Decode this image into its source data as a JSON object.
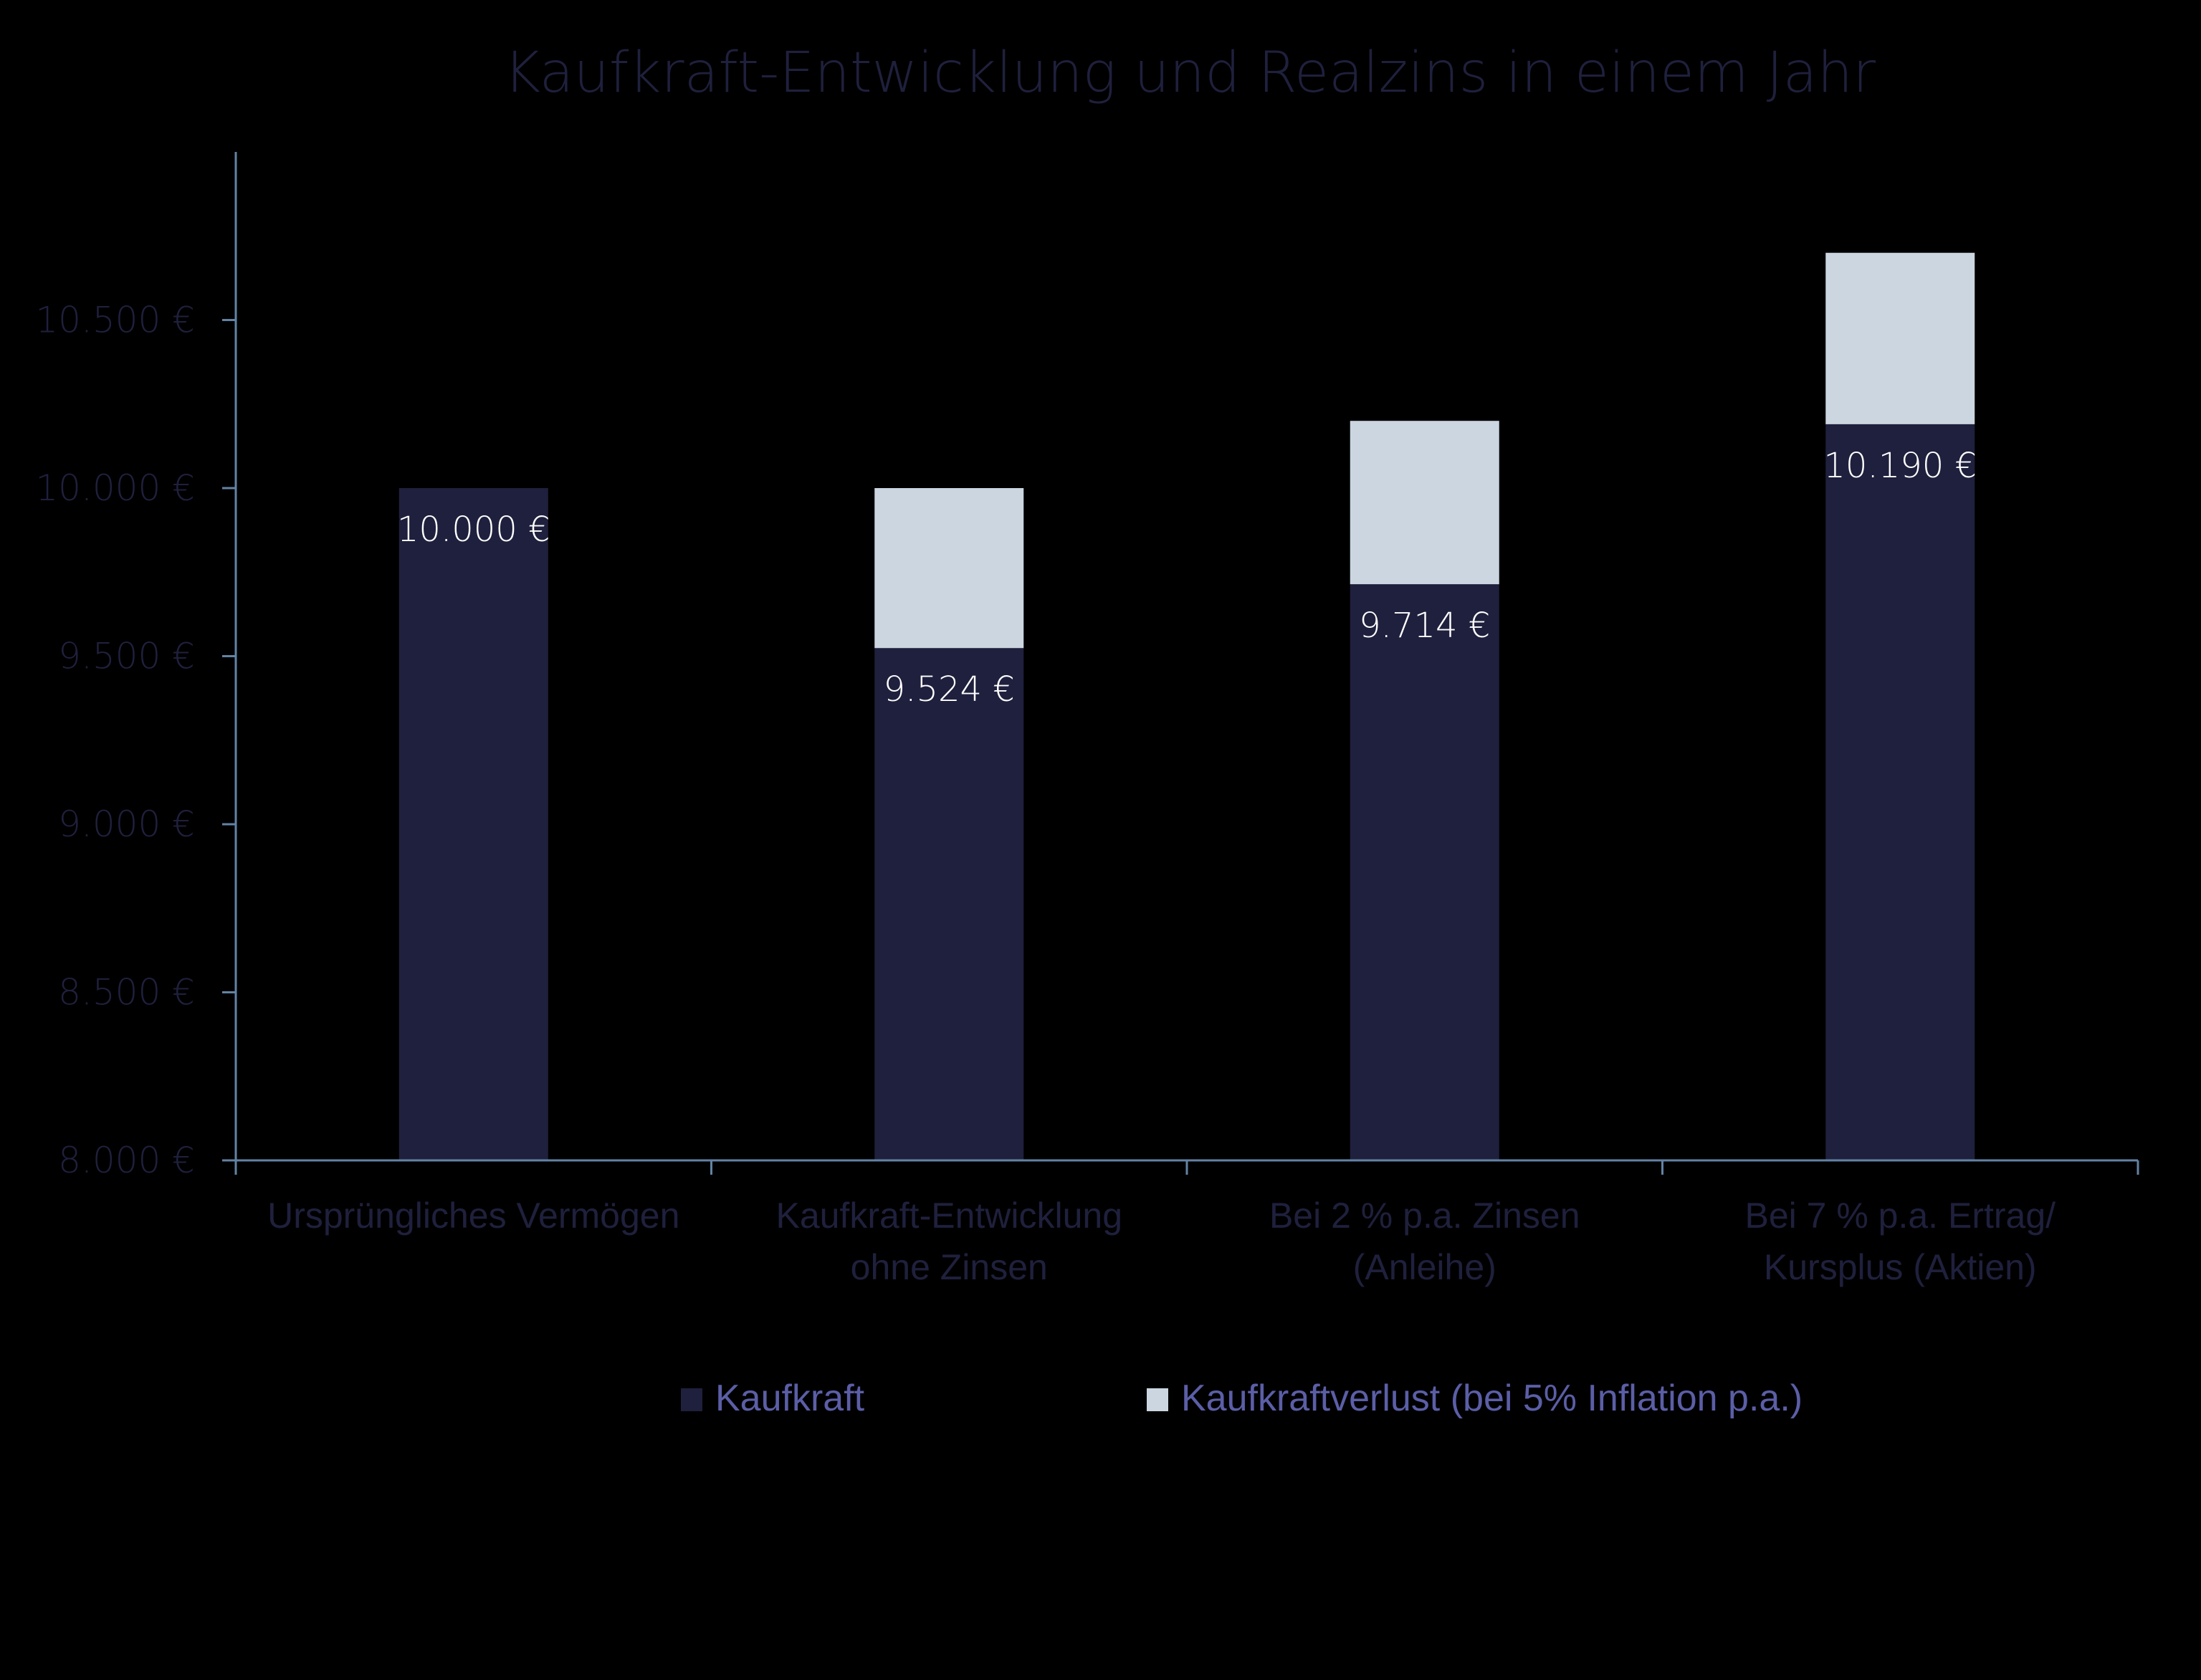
{
  "chart_data": {
    "type": "bar",
    "stacked": true,
    "title": "Kaufkraft-Entwicklung und Realzins in einem Jahr",
    "xlabel": "",
    "ylabel": "",
    "ylim": [
      8000,
      11000
    ],
    "yticks": [
      8000,
      8500,
      9000,
      9500,
      10000,
      10500
    ],
    "ytick_labels": [
      "8.000 €",
      "8.500 €",
      "9.000 €",
      "9.500 €",
      "10.000 €",
      "10.500 €"
    ],
    "categories": [
      [
        "Ursprüngliches Vermögen"
      ],
      [
        "Kaufkraft-Entwicklung",
        "ohne Zinsen"
      ],
      [
        "Bei 2 % p.a. Zinsen",
        "(Anleihe)"
      ],
      [
        "Bei 7 % p.a. Ertrag/",
        "Kursplus (Aktien)"
      ]
    ],
    "series": [
      {
        "name": "Kaufkraft",
        "color": "#1f203d",
        "values": [
          10000,
          9524,
          9714,
          10190
        ]
      },
      {
        "name": "Kaufkraftverlust (bei 5% Inflation p.a.)",
        "color": "#cbd6e0",
        "values": [
          0,
          476,
          486,
          510
        ]
      }
    ],
    "totals": [
      10000,
      10000,
      10200,
      10700
    ],
    "data_labels": [
      "10.000 €",
      "9.524 €",
      "9.714 €",
      "10.190 €"
    ],
    "grid": false,
    "legend_position": "bottom"
  },
  "colors": {
    "background": "#000000",
    "axis": "#6283a5",
    "text_dark": "#1f203d",
    "legend_text": "#5b5ea6",
    "label_text": "#ffffff"
  }
}
